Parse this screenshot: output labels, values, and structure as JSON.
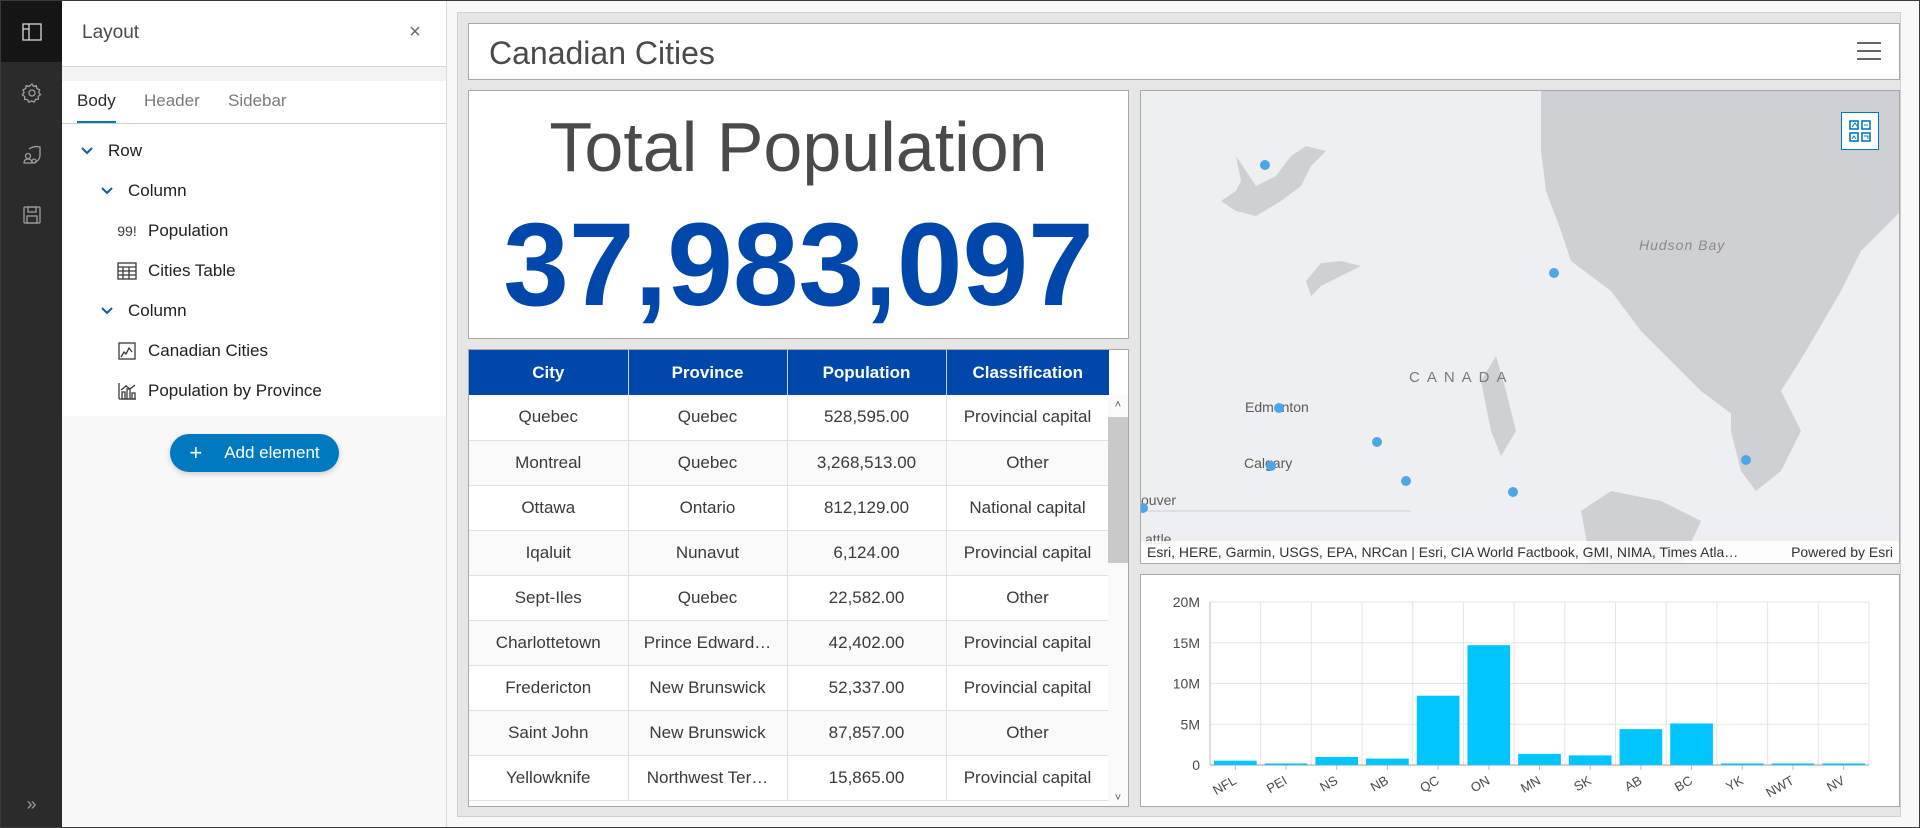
{
  "iconbar": {
    "items": [
      {
        "name": "layout-icon",
        "active": true
      },
      {
        "name": "gear-icon",
        "active": false
      },
      {
        "name": "theme-icon",
        "active": false
      },
      {
        "name": "save-icon",
        "active": false
      }
    ],
    "expand_icon": "double-chevron-right-icon"
  },
  "panel": {
    "title": "Layout",
    "close_label": "×",
    "tabs": [
      {
        "label": "Body",
        "active": true
      },
      {
        "label": "Header",
        "active": false
      },
      {
        "label": "Sidebar",
        "active": false
      }
    ],
    "tree": [
      {
        "label": "Row",
        "level": 0,
        "type": "row",
        "icon": "chevron-down-icon"
      },
      {
        "label": "Column",
        "level": 1,
        "type": "column",
        "icon": "chevron-down-icon"
      },
      {
        "label": "Population",
        "level": 2,
        "type": "indicator",
        "icon_text": "99!",
        "icon": "indicator-icon"
      },
      {
        "label": "Cities Table",
        "level": 2,
        "type": "table",
        "icon": "table-icon"
      },
      {
        "label": "Column",
        "level": 1,
        "type": "column",
        "icon": "chevron-down-icon"
      },
      {
        "label": "Canadian Cities",
        "level": 2,
        "type": "map",
        "icon": "map-icon"
      },
      {
        "label": "Population by Province",
        "level": 2,
        "type": "chart",
        "icon": "chart-icon"
      }
    ],
    "add_button": {
      "plus": "+",
      "label": "Add element"
    }
  },
  "dashboard": {
    "title": "Canadian Cities",
    "menu_icon": "hamburger-menu-icon",
    "indicator": {
      "label": "Total Population",
      "value": "37,983,097",
      "value_color": "#0047ab"
    },
    "table": {
      "header_color": "#0047ab",
      "columns": [
        "City",
        "Province",
        "Population",
        "Classification"
      ],
      "rows": [
        [
          "Quebec",
          "Quebec",
          "528,595.00",
          "Provincial capital"
        ],
        [
          "Montreal",
          "Quebec",
          "3,268,513.00",
          "Other"
        ],
        [
          "Ottawa",
          "Ontario",
          "812,129.00",
          "National capital"
        ],
        [
          "Iqaluit",
          "Nunavut",
          "6,124.00",
          "Provincial capital"
        ],
        [
          "Sept-Iles",
          "Quebec",
          "22,582.00",
          "Other"
        ],
        [
          "Charlottetown",
          "Prince Edward…",
          "42,402.00",
          "Provincial capital"
        ],
        [
          "Fredericton",
          "New Brunswick",
          "52,337.00",
          "Provincial capital"
        ],
        [
          "Saint John",
          "New Brunswick",
          "87,857.00",
          "Other"
        ],
        [
          "Yellowknife",
          "Northwest Ter…",
          "15,865.00",
          "Provincial capital"
        ]
      ],
      "scroll_up": "˄",
      "scroll_down": "˅"
    },
    "map": {
      "labels": {
        "country": "CANADA",
        "water": "Hudson Bay",
        "edmonton": "Edmonton",
        "calgary": "Calgary",
        "vancouver": "ouver",
        "seattle": "attle"
      },
      "point_color": "#4aa8e8",
      "widget_icon": "basemap-gallery-icon",
      "attribution": "Esri, HERE, Garmin, USGS, EPA, NRCan | Esri, CIA World Factbook, GMI, NIMA, Times Atla…",
      "powered_by": "Powered by Esri"
    }
  },
  "chart_data": {
    "type": "bar",
    "title": "Population by Province",
    "categories": [
      "NFL",
      "PEI",
      "NS",
      "NB",
      "QC",
      "ON",
      "MN",
      "SK",
      "AB",
      "BC",
      "YK",
      "NWT",
      "NV"
    ],
    "values": [
      530000,
      160000,
      980000,
      780000,
      8500000,
      14700000,
      1370000,
      1180000,
      4400000,
      5100000,
      40000,
      45000,
      39000
    ],
    "yticks": [
      "0",
      "5M",
      "10M",
      "15M",
      "20M"
    ],
    "ylim": [
      0,
      20000000
    ],
    "xlabel": "",
    "ylabel": "",
    "grid": true,
    "bar_color": "#00c5ff",
    "legend": "none"
  }
}
